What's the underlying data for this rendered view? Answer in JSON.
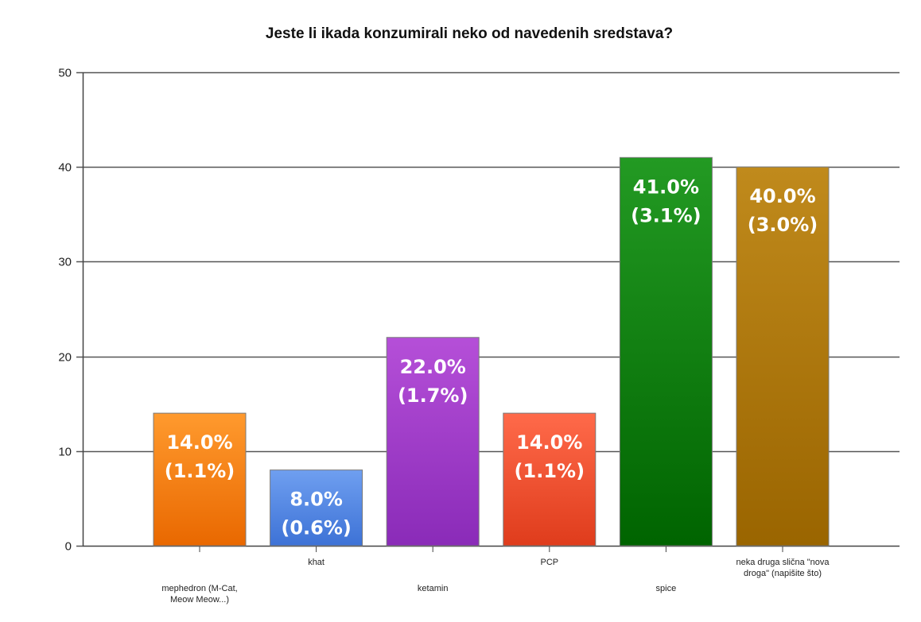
{
  "chart_data": {
    "type": "bar",
    "title": "Jeste li ikada konzumirali neko od navedenih sredstava?",
    "xlabel": "",
    "ylabel": "",
    "ylim": [
      0,
      50
    ],
    "yticks": [
      0,
      10,
      20,
      30,
      40,
      50
    ],
    "grid": true,
    "categories": [
      {
        "lines": [
          "mephedron (M-Cat,",
          "Meow Meow...)"
        ]
      },
      {
        "lines": [
          "khat"
        ]
      },
      {
        "lines": [
          "ketamin"
        ]
      },
      {
        "lines": [
          "PCP"
        ]
      },
      {
        "lines": [
          "spice"
        ]
      },
      {
        "lines": [
          "neka druga slična \"nova",
          "droga\" (napišite što)"
        ]
      }
    ],
    "values": [
      14,
      8,
      22,
      14,
      41,
      40
    ],
    "labels": [
      [
        "14.0%",
        "(1.1%)"
      ],
      [
        "8.0%",
        "(0.6%)"
      ],
      [
        "22.0%",
        "(1.7%)"
      ],
      [
        "14.0%",
        "(1.1%)"
      ],
      [
        "41.0%",
        "(3.1%)"
      ],
      [
        "40.0%",
        "(3.0%)"
      ]
    ],
    "colors": [
      [
        "#ff9a2e",
        "#e96800"
      ],
      [
        "#6f9ff0",
        "#3d72d6"
      ],
      [
        "#b54fd8",
        "#8a2bb8"
      ],
      [
        "#ff6a4a",
        "#df3c1c"
      ],
      [
        "#239a23",
        "#006400"
      ],
      [
        "#c08a1c",
        "#9a6500"
      ]
    ]
  }
}
